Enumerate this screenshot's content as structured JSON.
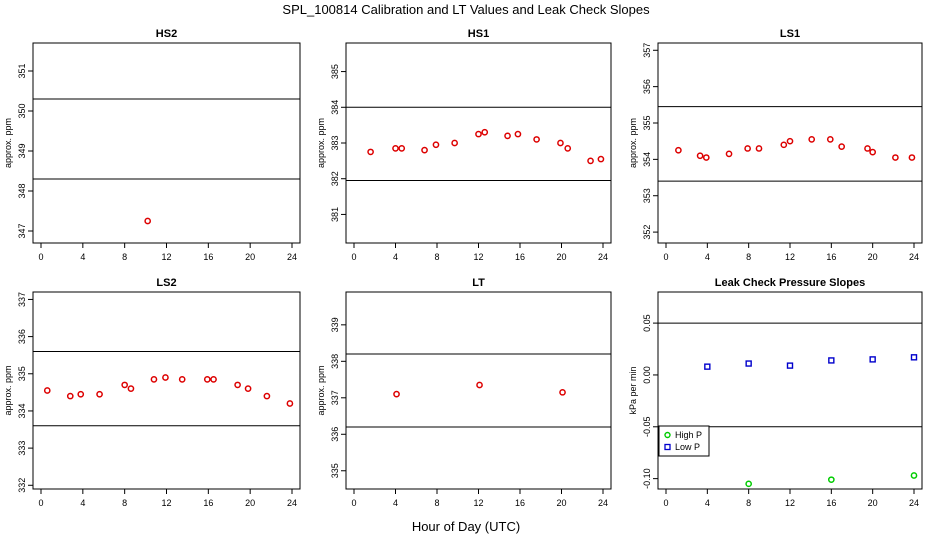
{
  "figure": {
    "title": "SPL_100814  Calibration and LT Values and Leak Check Slopes",
    "xlabel": "Hour of Day (UTC)"
  },
  "chart_data": [
    {
      "type": "scatter",
      "title": "HS2",
      "ylabel": "approx. ppm",
      "xlim": [
        0,
        24
      ],
      "ylim": [
        346.7,
        351.7
      ],
      "xticks": [
        0,
        4,
        8,
        12,
        16,
        20,
        24
      ],
      "yticks": [
        347,
        348,
        349,
        350,
        351
      ],
      "hlines": [
        350.3,
        348.3
      ],
      "series": [
        {
          "color": "#dd0000",
          "marker": "circle",
          "x": [
            10.2
          ],
          "y": [
            347.25
          ]
        }
      ]
    },
    {
      "type": "scatter",
      "title": "HS1",
      "ylabel": "approx. ppm",
      "xlim": [
        0,
        24
      ],
      "ylim": [
        380.2,
        385.8
      ],
      "xticks": [
        0,
        4,
        8,
        12,
        16,
        20,
        24
      ],
      "yticks": [
        381,
        382,
        383,
        384,
        385
      ],
      "hlines": [
        384.0,
        381.95
      ],
      "series": [
        {
          "color": "#dd0000",
          "marker": "circle",
          "x": [
            1.6,
            4.0,
            4.6,
            6.8,
            7.9,
            9.7,
            12.0,
            12.6,
            14.8,
            15.8,
            17.6,
            19.9,
            20.6,
            22.8,
            23.8
          ],
          "y": [
            382.75,
            382.85,
            382.85,
            382.8,
            382.95,
            383.0,
            383.25,
            383.3,
            383.2,
            383.25,
            383.1,
            383.0,
            382.85,
            382.5,
            382.55
          ]
        }
      ]
    },
    {
      "type": "scatter",
      "title": "LS1",
      "ylabel": "approx. ppm",
      "xlim": [
        0,
        24
      ],
      "ylim": [
        351.7,
        357.2
      ],
      "xticks": [
        0,
        4,
        8,
        12,
        16,
        20,
        24
      ],
      "yticks": [
        352,
        353,
        354,
        355,
        356,
        357
      ],
      "hlines": [
        355.45,
        353.4
      ],
      "series": [
        {
          "color": "#dd0000",
          "marker": "circle",
          "x": [
            1.2,
            3.3,
            3.9,
            6.1,
            7.9,
            9.0,
            11.4,
            12.0,
            14.1,
            15.9,
            17.0,
            19.5,
            20.0,
            22.2,
            23.8
          ],
          "y": [
            354.25,
            354.1,
            354.05,
            354.15,
            354.3,
            354.3,
            354.4,
            354.5,
            354.55,
            354.55,
            354.35,
            354.3,
            354.2,
            354.05,
            354.05
          ]
        }
      ]
    },
    {
      "type": "scatter",
      "title": "LS2",
      "ylabel": "approx. ppm",
      "xlim": [
        0,
        24
      ],
      "ylim": [
        331.9,
        337.2
      ],
      "xticks": [
        0,
        4,
        8,
        12,
        16,
        20,
        24
      ],
      "yticks": [
        332,
        333,
        334,
        335,
        336,
        337
      ],
      "hlines": [
        335.6,
        333.6
      ],
      "series": [
        {
          "color": "#dd0000",
          "marker": "circle",
          "x": [
            0.6,
            2.8,
            3.8,
            5.6,
            8.0,
            8.6,
            10.8,
            11.9,
            13.5,
            15.9,
            16.5,
            18.8,
            19.8,
            21.6,
            23.8
          ],
          "y": [
            334.55,
            334.4,
            334.45,
            334.45,
            334.7,
            334.6,
            334.85,
            334.9,
            334.85,
            334.85,
            334.85,
            334.7,
            334.6,
            334.4,
            334.2
          ]
        }
      ]
    },
    {
      "type": "scatter",
      "title": "LT",
      "ylabel": "approx. ppm",
      "xlim": [
        0,
        24
      ],
      "ylim": [
        334.5,
        339.9
      ],
      "xticks": [
        0,
        4,
        8,
        12,
        16,
        20,
        24
      ],
      "yticks": [
        335,
        336,
        337,
        338,
        339
      ],
      "hlines": [
        338.2,
        336.2
      ],
      "series": [
        {
          "color": "#dd0000",
          "marker": "circle",
          "x": [
            4.1,
            12.1,
            20.1
          ],
          "y": [
            337.1,
            337.35,
            337.15
          ]
        }
      ]
    },
    {
      "type": "scatter",
      "title": "Leak Check Pressure Slopes",
      "ylabel": "kPa per min",
      "xlim": [
        0,
        24
      ],
      "ylim": [
        -0.11,
        0.08
      ],
      "xticks": [
        0,
        4,
        8,
        12,
        16,
        20,
        24
      ],
      "yticks": [
        -0.1,
        -0.05,
        0.0,
        0.05
      ],
      "ytick_labels": [
        "-0.10",
        "-0.05",
        "0.00",
        "0.05"
      ],
      "hlines": [
        0.05,
        -0.05
      ],
      "legend": "bottom-left",
      "series": [
        {
          "name": "High P",
          "color": "#00cc00",
          "marker": "circle",
          "x": [
            8,
            16,
            24
          ],
          "y": [
            -0.105,
            -0.101,
            -0.097
          ]
        },
        {
          "name": "Low P",
          "color": "#0000cc",
          "marker": "square",
          "x": [
            4,
            8,
            12,
            16,
            20,
            24
          ],
          "y": [
            0.008,
            0.011,
            0.009,
            0.014,
            0.015,
            0.017
          ]
        }
      ]
    }
  ]
}
